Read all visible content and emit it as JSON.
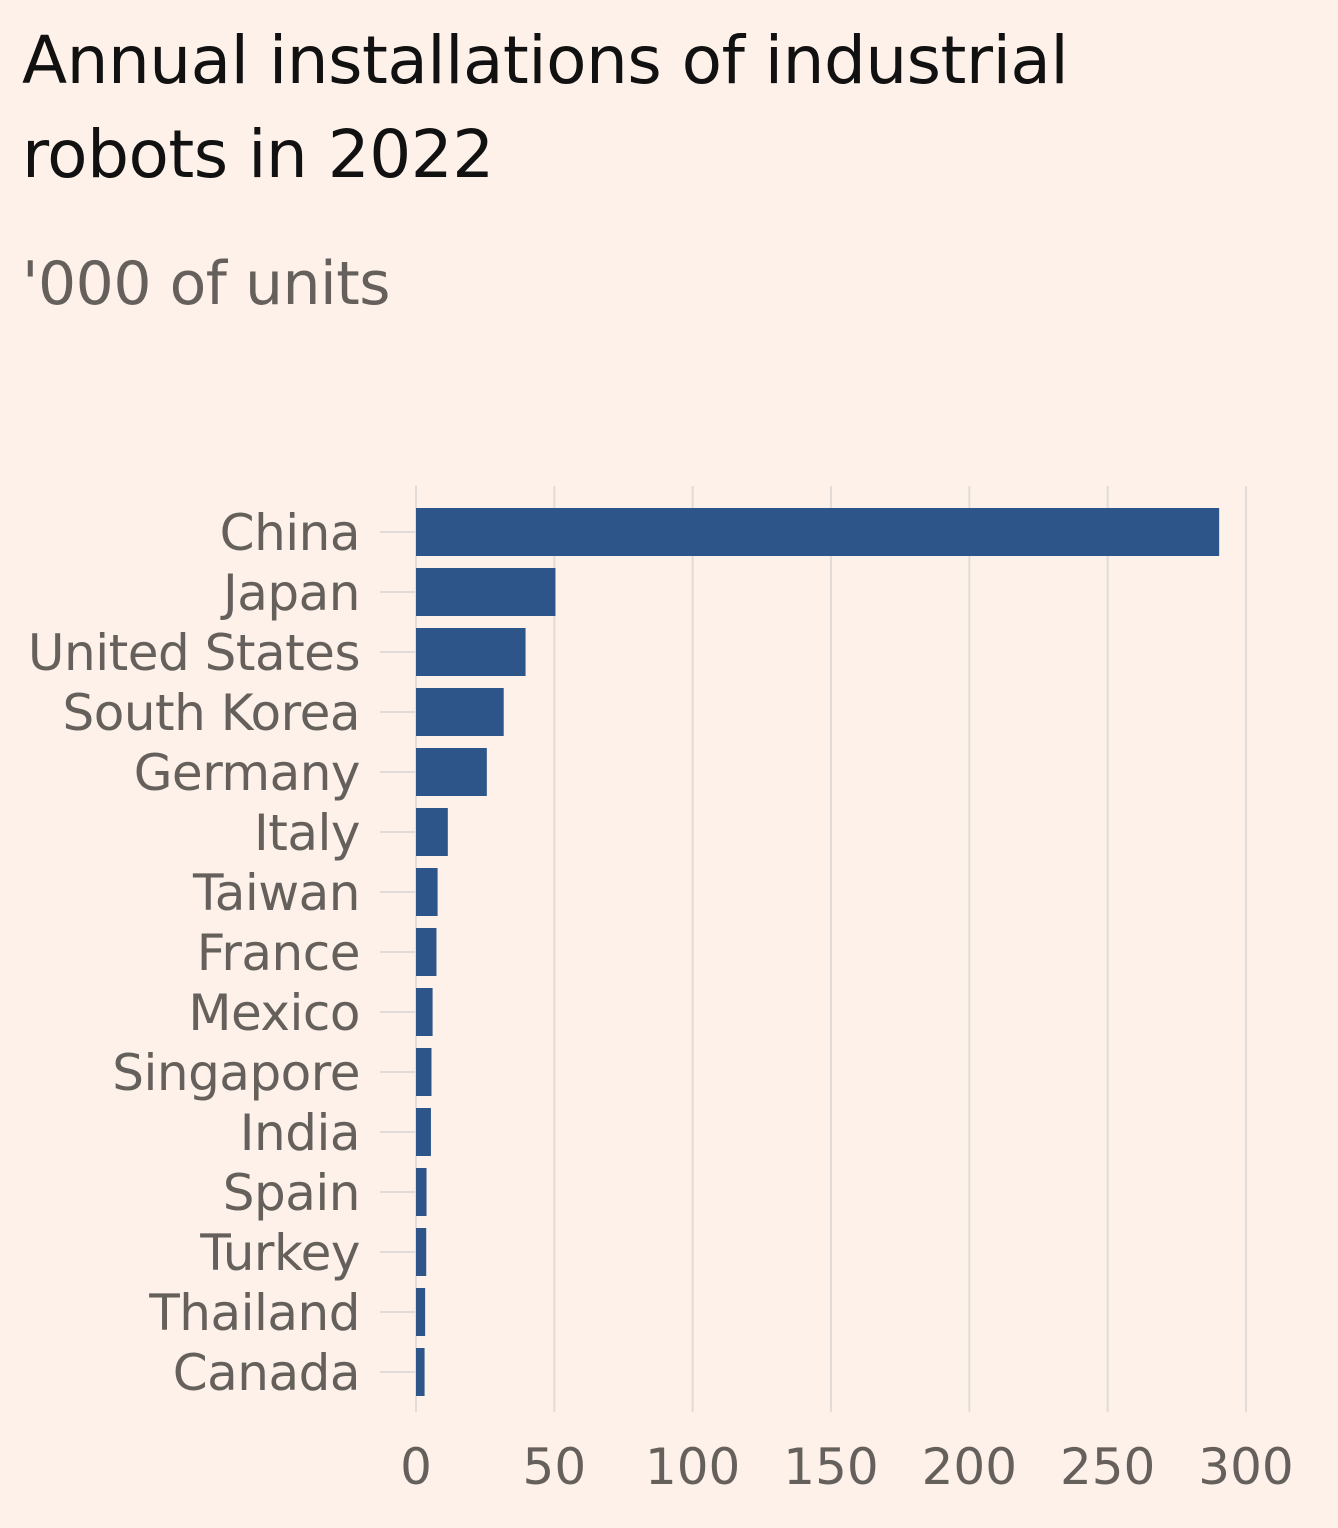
{
  "header": {
    "title": "Annual installations of industrial robots in 2022",
    "subtitle": "'000 of units"
  },
  "colors": {
    "background": "#fdf1e9",
    "bar": "#2d5589",
    "grid": "#e2dcd8",
    "label": "#66605c",
    "title": "#111111"
  },
  "chart_data": {
    "type": "bar",
    "orientation": "horizontal",
    "title": "Annual installations of industrial robots in 2022",
    "subtitle": "'000 of units",
    "xlabel": "",
    "ylabel": "",
    "categories": [
      "China",
      "Japan",
      "United States",
      "South Korea",
      "Germany",
      "Italy",
      "Taiwan",
      "France",
      "Mexico",
      "Singapore",
      "India",
      "Spain",
      "Turkey",
      "Thailand",
      "Canada"
    ],
    "values": [
      290.3,
      50.4,
      39.6,
      31.7,
      25.6,
      11.5,
      7.8,
      7.4,
      6.0,
      5.6,
      5.4,
      3.8,
      3.7,
      3.3,
      3.1
    ],
    "xlim": [
      0,
      300
    ],
    "xticks": [
      0,
      50,
      100,
      150,
      200,
      250,
      300
    ],
    "grid": true,
    "legend": "none"
  }
}
